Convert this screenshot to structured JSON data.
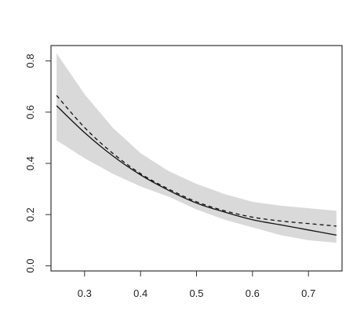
{
  "chart_data": {
    "type": "line",
    "title": "",
    "xlabel": "",
    "ylabel": "",
    "xlim": [
      0.24,
      0.76
    ],
    "ylim": [
      -0.02,
      0.86
    ],
    "x_ticks": [
      0.3,
      0.4,
      0.5,
      0.6,
      0.7
    ],
    "x_tick_labels": [
      "0.3",
      "0.4",
      "0.5",
      "0.6",
      "0.7"
    ],
    "y_ticks": [
      0.0,
      0.2,
      0.4,
      0.6,
      0.8
    ],
    "y_tick_labels": [
      "0.0",
      "0.2",
      "0.4",
      "0.6",
      "0.8"
    ],
    "grid": false,
    "legend": "none",
    "band_color": "#d9d9d9",
    "line_color": "#111111",
    "x": [
      0.25,
      0.3,
      0.35,
      0.4,
      0.45,
      0.5,
      0.55,
      0.6,
      0.65,
      0.7,
      0.75
    ],
    "band": {
      "upper": [
        0.83,
        0.67,
        0.54,
        0.44,
        0.37,
        0.32,
        0.28,
        0.25,
        0.235,
        0.225,
        0.215
      ],
      "lower": [
        0.49,
        0.42,
        0.36,
        0.31,
        0.27,
        0.22,
        0.18,
        0.15,
        0.12,
        0.1,
        0.09
      ]
    },
    "series": [
      {
        "style": "solid",
        "values": [
          0.625,
          0.52,
          0.43,
          0.355,
          0.295,
          0.245,
          0.21,
          0.18,
          0.16,
          0.14,
          0.12
        ]
      },
      {
        "style": "dashed",
        "values": [
          0.665,
          0.54,
          0.44,
          0.36,
          0.3,
          0.25,
          0.215,
          0.19,
          0.175,
          0.165,
          0.155
        ]
      }
    ]
  }
}
